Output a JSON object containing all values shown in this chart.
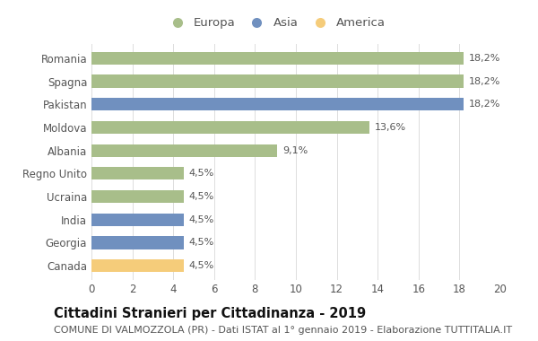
{
  "categories": [
    "Canada",
    "Georgia",
    "India",
    "Ucraina",
    "Regno Unito",
    "Albania",
    "Moldova",
    "Pakistan",
    "Spagna",
    "Romania"
  ],
  "values": [
    4.5,
    4.5,
    4.5,
    4.5,
    4.5,
    9.1,
    13.6,
    18.2,
    18.2,
    18.2
  ],
  "labels": [
    "4,5%",
    "4,5%",
    "4,5%",
    "4,5%",
    "4,5%",
    "9,1%",
    "13,6%",
    "18,2%",
    "18,2%",
    "18,2%"
  ],
  "colors": [
    "#f5cc7a",
    "#7090bf",
    "#7090bf",
    "#a8be8a",
    "#a8be8a",
    "#a8be8a",
    "#a8be8a",
    "#7090bf",
    "#a8be8a",
    "#a8be8a"
  ],
  "legend_labels": [
    "Europa",
    "Asia",
    "America"
  ],
  "legend_colors": [
    "#a8be8a",
    "#7090bf",
    "#f5cc7a"
  ],
  "title": "Cittadini Stranieri per Cittadinanza - 2019",
  "subtitle": "COMUNE DI VALMOZZOLA (PR) - Dati ISTAT al 1° gennaio 2019 - Elaborazione TUTTITALIA.IT",
  "xlim": [
    0,
    20
  ],
  "xticks": [
    0,
    2,
    4,
    6,
    8,
    10,
    12,
    14,
    16,
    18,
    20
  ],
  "background_color": "#ffffff",
  "bar_height": 0.55,
  "title_fontsize": 10.5,
  "subtitle_fontsize": 8,
  "label_fontsize": 8,
  "tick_fontsize": 8.5,
  "legend_fontsize": 9.5
}
